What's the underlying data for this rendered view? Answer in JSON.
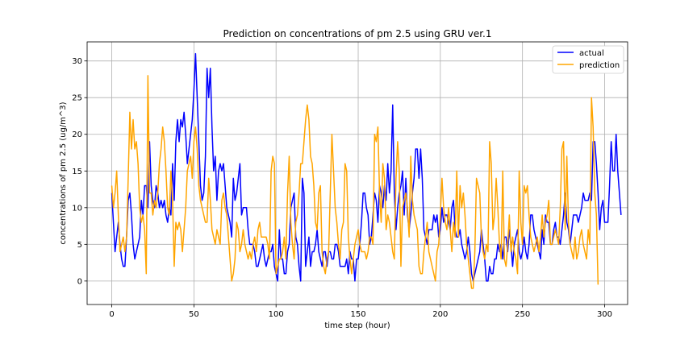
{
  "chart_data": {
    "type": "line",
    "title": "Prediction on concentrations of pm 2.5 using GRU ver.1",
    "xlabel": "time step (hour)",
    "ylabel": "concentrations of pm 2.5 (ug/m^3)",
    "xlim": [
      -15,
      314
    ],
    "ylim": [
      -3.2,
      32.6
    ],
    "xticks": [
      0,
      50,
      100,
      150,
      200,
      250,
      300
    ],
    "yticks": [
      0,
      5,
      10,
      15,
      20,
      25,
      30
    ],
    "grid": true,
    "legend_position": "top-right",
    "series": [
      {
        "name": "actual",
        "color": "#0000ff",
        "values": [
          12,
          8,
          4,
          6,
          8,
          5,
          3,
          2,
          2,
          6,
          11,
          12,
          9,
          5,
          3,
          4,
          5,
          6,
          11,
          9,
          13,
          13,
          10,
          19,
          13,
          11,
          10,
          13,
          12,
          10,
          11,
          10,
          11,
          9,
          8,
          10,
          9,
          16,
          11,
          19,
          22,
          19,
          22,
          21,
          23,
          20,
          16,
          18,
          20,
          22,
          26,
          31,
          25,
          19,
          13,
          11,
          12,
          17,
          29,
          25,
          29,
          21,
          15,
          17,
          11,
          15,
          16,
          15,
          16,
          13,
          10,
          9,
          8,
          6,
          14,
          11,
          12,
          14,
          16,
          9,
          10,
          10,
          10,
          7,
          5,
          5,
          5,
          4,
          2,
          2,
          3,
          4,
          5,
          3,
          2,
          3,
          4,
          4,
          5,
          2,
          1,
          0,
          7,
          3,
          3,
          1,
          1,
          4,
          5,
          10,
          11,
          12,
          6,
          5,
          2,
          0,
          14,
          12,
          2,
          4,
          6,
          2,
          4,
          4,
          5,
          7,
          4,
          3,
          2,
          4,
          4,
          2,
          4,
          4,
          3,
          3,
          5,
          5,
          4,
          2,
          2,
          2,
          2,
          3,
          1,
          4,
          3,
          3,
          0,
          3,
          3,
          5,
          8,
          12,
          12,
          10,
          9,
          5,
          6,
          9,
          12,
          11,
          8,
          13,
          12,
          10,
          13,
          11,
          16,
          12,
          15,
          24,
          12,
          7,
          10,
          12,
          13,
          15,
          9,
          14,
          9,
          7,
          9,
          12,
          14,
          18,
          18,
          14,
          18,
          14,
          7,
          6,
          5,
          7,
          7,
          7,
          9,
          8,
          9,
          6,
          7,
          10,
          8,
          9,
          9,
          8,
          7,
          10,
          11,
          7,
          6,
          6,
          7,
          5,
          4,
          3,
          4,
          6,
          4,
          1,
          0,
          1,
          2,
          3,
          4,
          7,
          5,
          3,
          0,
          0,
          2,
          1,
          1,
          3,
          3,
          5,
          4,
          5,
          3,
          6,
          6,
          4,
          7,
          5,
          2,
          5,
          6,
          7,
          4,
          3,
          4,
          6,
          4,
          3,
          5,
          9,
          9,
          7,
          6,
          5,
          4,
          3,
          7,
          5,
          9,
          8,
          8,
          5,
          5,
          7,
          8,
          6,
          6,
          5,
          7,
          9,
          12,
          8,
          7,
          5,
          7,
          9,
          9,
          9,
          8,
          9,
          10,
          12,
          11,
          11,
          11,
          12,
          11,
          19,
          19,
          16,
          12,
          7,
          10,
          11,
          8,
          8,
          8,
          13,
          19,
          15,
          15,
          20,
          15,
          12,
          9
        ]
      },
      {
        "name": "prediction",
        "color": "#ffa500",
        "values": [
          13,
          10,
          12,
          15,
          9,
          4,
          5,
          6,
          4,
          6,
          14,
          23,
          18,
          22,
          18,
          19,
          16,
          10,
          8,
          9,
          7,
          1,
          28,
          12,
          12,
          9,
          11,
          10,
          12,
          16,
          18,
          21,
          19,
          15,
          10,
          9,
          15,
          11,
          2,
          8,
          7,
          8,
          7,
          4,
          7,
          10,
          15,
          16,
          17,
          14,
          19,
          21,
          18,
          13,
          11,
          10,
          9,
          8,
          8,
          14,
          11,
          7,
          6,
          5,
          7,
          6,
          5,
          11,
          12,
          10,
          9,
          6,
          3,
          0,
          1,
          3,
          8,
          7,
          4,
          5,
          7,
          5,
          4,
          3,
          4,
          3,
          5,
          6,
          4,
          7,
          8,
          6,
          6,
          6,
          6,
          5,
          3,
          15,
          17,
          16,
          1,
          2,
          3,
          3,
          4,
          6,
          3,
          12,
          17,
          8,
          5,
          3,
          8,
          9,
          12,
          16,
          16,
          19,
          22,
          24,
          22,
          17,
          16,
          13,
          8,
          7,
          12,
          13,
          4,
          2,
          1,
          3,
          4,
          12,
          20,
          15,
          10,
          8,
          5,
          3,
          7,
          8,
          16,
          15,
          6,
          3,
          1,
          3,
          5,
          6,
          7,
          5,
          4,
          4,
          4,
          3,
          4,
          6,
          6,
          5,
          20,
          19,
          21,
          12,
          8,
          16,
          14,
          7,
          9,
          8,
          6,
          4,
          3,
          14,
          19,
          15,
          2,
          10,
          11,
          12,
          10,
          6,
          17,
          11,
          9,
          8,
          7,
          2,
          1,
          1,
          4,
          6,
          8,
          4,
          3,
          2,
          1,
          0,
          4,
          5,
          9,
          14,
          10,
          8,
          7,
          10,
          7,
          4,
          8,
          6,
          15,
          6,
          13,
          10,
          12,
          9,
          5,
          3,
          1,
          -1,
          -1,
          4,
          14,
          13,
          12,
          6,
          4,
          3,
          5,
          4,
          19,
          16,
          7,
          9,
          14,
          10,
          5,
          3,
          15,
          3,
          2,
          5,
          9,
          4,
          6,
          4,
          3,
          1,
          15,
          8,
          5,
          13,
          12,
          13,
          9,
          6,
          5,
          4,
          5,
          6,
          4,
          6,
          9,
          6,
          8,
          9,
          11,
          5,
          5,
          6,
          7,
          6,
          5,
          10,
          18,
          19,
          7,
          17,
          8,
          5,
          4,
          3,
          6,
          3,
          4,
          6,
          7,
          5,
          4,
          3,
          7,
          5,
          25,
          21,
          12,
          9,
          -0.5
        ]
      }
    ]
  }
}
